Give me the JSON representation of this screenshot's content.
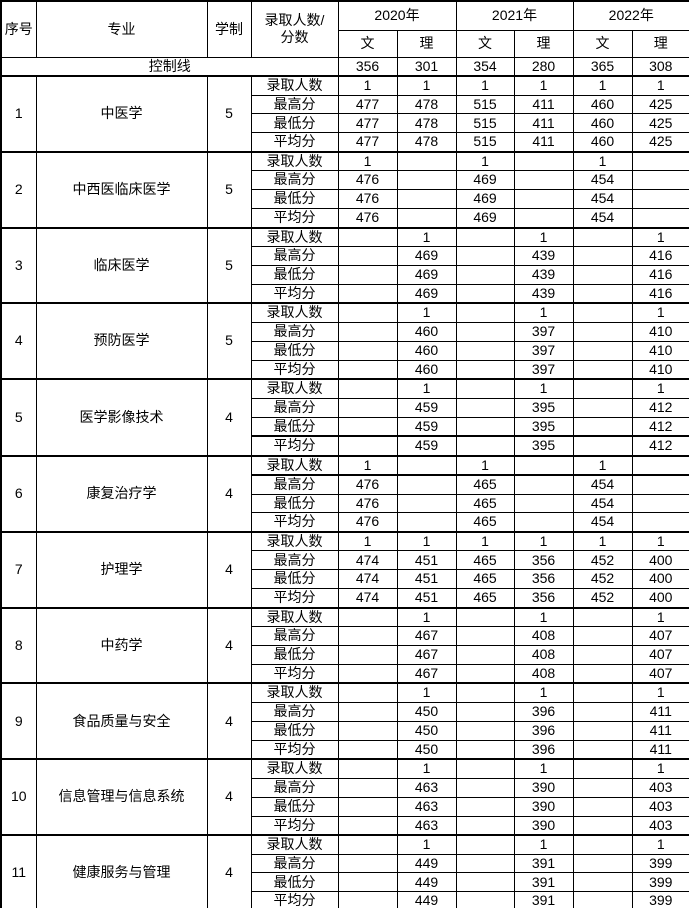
{
  "header": {
    "cols": [
      "序号",
      "专业",
      "学制"
    ],
    "score_label": {
      "line1": "录取人数/",
      "line2": "分数"
    },
    "years": [
      "2020年",
      "2021年",
      "2022年"
    ],
    "subjects": [
      "文",
      "理",
      "文",
      "理",
      "文",
      "理"
    ]
  },
  "control_line": {
    "label": "控制线",
    "values": [
      "356",
      "301",
      "354",
      "280",
      "365",
      "308"
    ]
  },
  "row_labels": [
    "录取人数",
    "最高分",
    "最低分",
    "平均分"
  ],
  "majors": [
    {
      "no": "1",
      "name": "中医学",
      "years": "5",
      "rows": [
        [
          "1",
          "1",
          "1",
          "1",
          "1",
          "1"
        ],
        [
          "477",
          "478",
          "515",
          "411",
          "460",
          "425"
        ],
        [
          "477",
          "478",
          "515",
          "411",
          "460",
          "425"
        ],
        [
          "477",
          "478",
          "515",
          "411",
          "460",
          "425"
        ]
      ]
    },
    {
      "no": "2",
      "name": "中西医临床医学",
      "years": "5",
      "rows": [
        [
          "1",
          "",
          "1",
          "",
          "1",
          ""
        ],
        [
          "476",
          "",
          "469",
          "",
          "454",
          ""
        ],
        [
          "476",
          "",
          "469",
          "",
          "454",
          ""
        ],
        [
          "476",
          "",
          "469",
          "",
          "454",
          ""
        ]
      ]
    },
    {
      "no": "3",
      "name": "临床医学",
      "years": "5",
      "rows": [
        [
          "",
          "1",
          "",
          "1",
          "",
          "1"
        ],
        [
          "",
          "469",
          "",
          "439",
          "",
          "416"
        ],
        [
          "",
          "469",
          "",
          "439",
          "",
          "416"
        ],
        [
          "",
          "469",
          "",
          "439",
          "",
          "416"
        ]
      ]
    },
    {
      "no": "4",
      "name": "预防医学",
      "years": "5",
      "rows": [
        [
          "",
          "1",
          "",
          "1",
          "",
          "1"
        ],
        [
          "",
          "460",
          "",
          "397",
          "",
          "410"
        ],
        [
          "",
          "460",
          "",
          "397",
          "",
          "410"
        ],
        [
          "",
          "460",
          "",
          "397",
          "",
          "410"
        ]
      ]
    },
    {
      "no": "5",
      "name": "医学影像技术",
      "years": "4",
      "rows": [
        [
          "",
          "1",
          "",
          "1",
          "",
          "1"
        ],
        [
          "",
          "459",
          "",
          "395",
          "",
          "412"
        ],
        [
          "",
          "459",
          "",
          "395",
          "",
          "412"
        ],
        [
          "",
          "459",
          "",
          "395",
          "",
          "412"
        ]
      ]
    },
    {
      "no": "6",
      "name": "康复治疗学",
      "years": "4",
      "rows": [
        [
          "1",
          "",
          "1",
          "",
          "1",
          ""
        ],
        [
          "476",
          "",
          "465",
          "",
          "454",
          ""
        ],
        [
          "476",
          "",
          "465",
          "",
          "454",
          ""
        ],
        [
          "476",
          "",
          "465",
          "",
          "454",
          ""
        ]
      ]
    },
    {
      "no": "7",
      "name": "护理学",
      "years": "4",
      "rows": [
        [
          "1",
          "1",
          "1",
          "1",
          "1",
          "1"
        ],
        [
          "474",
          "451",
          "465",
          "356",
          "452",
          "400"
        ],
        [
          "474",
          "451",
          "465",
          "356",
          "452",
          "400"
        ],
        [
          "474",
          "451",
          "465",
          "356",
          "452",
          "400"
        ]
      ]
    },
    {
      "no": "8",
      "name": "中药学",
      "years": "4",
      "rows": [
        [
          "",
          "1",
          "",
          "1",
          "",
          "1"
        ],
        [
          "",
          "467",
          "",
          "408",
          "",
          "407"
        ],
        [
          "",
          "467",
          "",
          "408",
          "",
          "407"
        ],
        [
          "",
          "467",
          "",
          "408",
          "",
          "407"
        ]
      ]
    },
    {
      "no": "9",
      "name": "食品质量与安全",
      "years": "4",
      "rows": [
        [
          "",
          "1",
          "",
          "1",
          "",
          "1"
        ],
        [
          "",
          "450",
          "",
          "396",
          "",
          "411"
        ],
        [
          "",
          "450",
          "",
          "396",
          "",
          "411"
        ],
        [
          "",
          "450",
          "",
          "396",
          "",
          "411"
        ]
      ]
    },
    {
      "no": "10",
      "name": "信息管理与信息系统",
      "years": "4",
      "rows": [
        [
          "",
          "1",
          "",
          "1",
          "",
          "1"
        ],
        [
          "",
          "463",
          "",
          "390",
          "",
          "403"
        ],
        [
          "",
          "463",
          "",
          "390",
          "",
          "403"
        ],
        [
          "",
          "463",
          "",
          "390",
          "",
          "403"
        ]
      ]
    },
    {
      "no": "11",
      "name": "健康服务与管理",
      "years": "4",
      "rows": [
        [
          "",
          "1",
          "",
          "1",
          "",
          "1"
        ],
        [
          "",
          "449",
          "",
          "391",
          "",
          "399"
        ],
        [
          "",
          "449",
          "",
          "391",
          "",
          "399"
        ],
        [
          "",
          "449",
          "",
          "391",
          "",
          "399"
        ]
      ]
    }
  ],
  "anomalies": {
    "thick_line_major5_above_row": 3,
    "thick_line_major6_above_row": 1
  },
  "colors": {
    "border": "#000000",
    "background": "#ffffff",
    "text": "#000000"
  }
}
